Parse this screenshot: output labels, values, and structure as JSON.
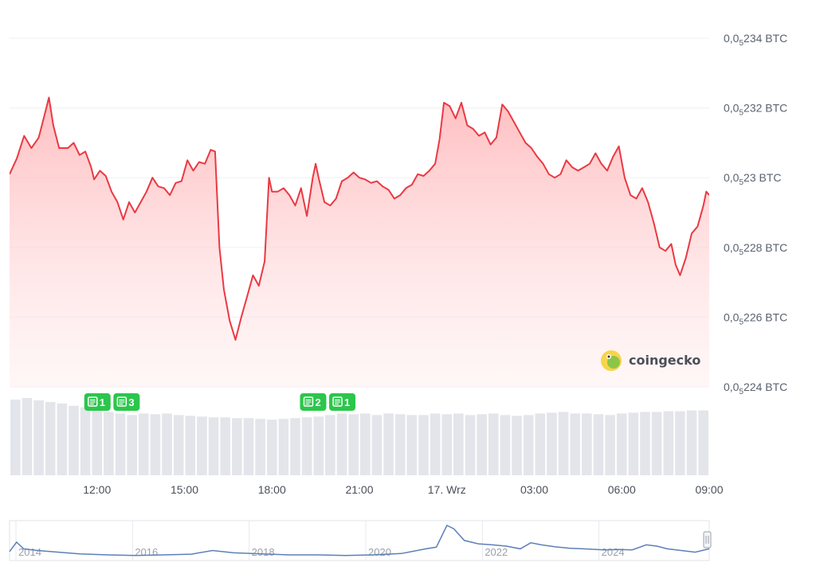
{
  "chart_data": {
    "type": "line",
    "price_unit": "BTC",
    "y_ticks": [
      {
        "value": 2.24e-06,
        "label_base": "0,0",
        "label_sub": "5",
        "label_rest": "224 BTC"
      },
      {
        "value": 2.26e-06,
        "label_base": "0,0",
        "label_sub": "5",
        "label_rest": "226 BTC"
      },
      {
        "value": 2.28e-06,
        "label_base": "0,0",
        "label_sub": "5",
        "label_rest": "228 BTC"
      },
      {
        "value": 2.3e-06,
        "label_base": "0,0",
        "label_sub": "5",
        "label_rest": "23 BTC"
      },
      {
        "value": 2.32e-06,
        "label_base": "0,0",
        "label_sub": "5",
        "label_rest": "232 BTC"
      },
      {
        "value": 2.34e-06,
        "label_base": "0,0",
        "label_sub": "5",
        "label_rest": "234 BTC"
      }
    ],
    "ylim": [
      2.24e-06,
      2.34e-06
    ],
    "x_range_hours": [
      9,
      33
    ],
    "x_ticks": [
      {
        "hour": 12,
        "label": "12:00"
      },
      {
        "hour": 15,
        "label": "15:00"
      },
      {
        "hour": 18,
        "label": "18:00"
      },
      {
        "hour": 21,
        "label": "21:00"
      },
      {
        "hour": 24,
        "label": "17. Wrz"
      },
      {
        "hour": 27,
        "label": "03:00"
      },
      {
        "hour": 30,
        "label": "06:00"
      },
      {
        "hour": 33,
        "label": "09:00"
      }
    ],
    "series": [
      {
        "color": "#ea3943",
        "points": [
          [
            9.0,
            2.301
          ],
          [
            9.25,
            2.3055
          ],
          [
            9.5,
            2.312
          ],
          [
            9.75,
            2.3085
          ],
          [
            10.0,
            2.3115
          ],
          [
            10.2,
            2.318
          ],
          [
            10.35,
            2.323
          ],
          [
            10.5,
            2.315
          ],
          [
            10.7,
            2.3085
          ],
          [
            11.0,
            2.3085
          ],
          [
            11.2,
            2.31
          ],
          [
            11.4,
            2.3065
          ],
          [
            11.6,
            2.3075
          ],
          [
            11.8,
            2.303
          ],
          [
            11.9,
            2.2995
          ],
          [
            12.1,
            2.302
          ],
          [
            12.3,
            2.3005
          ],
          [
            12.5,
            2.296
          ],
          [
            12.7,
            2.293
          ],
          [
            12.9,
            2.288
          ],
          [
            13.1,
            2.293
          ],
          [
            13.3,
            2.29
          ],
          [
            13.5,
            2.293
          ],
          [
            13.7,
            2.296
          ],
          [
            13.9,
            2.3
          ],
          [
            14.1,
            2.2975
          ],
          [
            14.3,
            2.297
          ],
          [
            14.5,
            2.295
          ],
          [
            14.7,
            2.2985
          ],
          [
            14.9,
            2.299
          ],
          [
            15.1,
            2.305
          ],
          [
            15.3,
            2.302
          ],
          [
            15.5,
            2.3045
          ],
          [
            15.7,
            2.304
          ],
          [
            15.9,
            2.308
          ],
          [
            16.05,
            2.3075
          ],
          [
            16.2,
            2.28
          ],
          [
            16.35,
            2.268
          ],
          [
            16.55,
            2.259
          ],
          [
            16.75,
            2.2535
          ],
          [
            16.95,
            2.26
          ],
          [
            17.15,
            2.266
          ],
          [
            17.35,
            2.272
          ],
          [
            17.55,
            2.269
          ],
          [
            17.75,
            2.276
          ],
          [
            17.9,
            2.3
          ],
          [
            18.0,
            2.296
          ],
          [
            18.2,
            2.296
          ],
          [
            18.4,
            2.297
          ],
          [
            18.6,
            2.295
          ],
          [
            18.8,
            2.292
          ],
          [
            19.0,
            2.297
          ],
          [
            19.2,
            2.289
          ],
          [
            19.4,
            2.3
          ],
          [
            19.5,
            2.304
          ],
          [
            19.6,
            2.3
          ],
          [
            19.8,
            2.293
          ],
          [
            20.0,
            2.292
          ],
          [
            20.2,
            2.294
          ],
          [
            20.4,
            2.299
          ],
          [
            20.6,
            2.3
          ],
          [
            20.8,
            2.3015
          ],
          [
            21.0,
            2.3
          ],
          [
            21.2,
            2.2995
          ],
          [
            21.4,
            2.2985
          ],
          [
            21.6,
            2.299
          ],
          [
            21.8,
            2.2975
          ],
          [
            22.0,
            2.2965
          ],
          [
            22.2,
            2.294
          ],
          [
            22.4,
            2.295
          ],
          [
            22.6,
            2.297
          ],
          [
            22.8,
            2.298
          ],
          [
            23.0,
            2.301
          ],
          [
            23.2,
            2.3005
          ],
          [
            23.4,
            2.302
          ],
          [
            23.6,
            2.304
          ],
          [
            23.75,
            2.311
          ],
          [
            23.9,
            2.3215
          ],
          [
            24.1,
            2.3205
          ],
          [
            24.3,
            2.317
          ],
          [
            24.5,
            2.3215
          ],
          [
            24.7,
            2.315
          ],
          [
            24.9,
            2.314
          ],
          [
            25.1,
            2.312
          ],
          [
            25.3,
            2.313
          ],
          [
            25.5,
            2.3095
          ],
          [
            25.7,
            2.3115
          ],
          [
            25.9,
            2.321
          ],
          [
            26.1,
            2.319
          ],
          [
            26.3,
            2.316
          ],
          [
            26.5,
            2.313
          ],
          [
            26.7,
            2.31
          ],
          [
            26.9,
            2.3085
          ],
          [
            27.1,
            2.306
          ],
          [
            27.3,
            2.304
          ],
          [
            27.5,
            2.301
          ],
          [
            27.7,
            2.3
          ],
          [
            27.9,
            2.301
          ],
          [
            28.1,
            2.305
          ],
          [
            28.3,
            2.303
          ],
          [
            28.5,
            2.302
          ],
          [
            28.7,
            2.303
          ],
          [
            28.9,
            2.304
          ],
          [
            29.1,
            2.307
          ],
          [
            29.3,
            2.304
          ],
          [
            29.5,
            2.302
          ],
          [
            29.7,
            2.306
          ],
          [
            29.9,
            2.309
          ],
          [
            30.1,
            2.3
          ],
          [
            30.3,
            2.295
          ],
          [
            30.5,
            2.294
          ],
          [
            30.7,
            2.297
          ],
          [
            30.9,
            2.293
          ],
          [
            31.1,
            2.287
          ],
          [
            31.3,
            2.28
          ],
          [
            31.5,
            2.279
          ],
          [
            31.7,
            2.281
          ],
          [
            31.85,
            2.275
          ],
          [
            32.0,
            2.272
          ],
          [
            32.2,
            2.277
          ],
          [
            32.4,
            2.284
          ],
          [
            32.6,
            2.286
          ],
          [
            32.8,
            2.292
          ],
          [
            32.9,
            2.296
          ],
          [
            33.0,
            2.295
          ]
        ]
      }
    ],
    "volume_bars": [
      0.98,
      1.0,
      0.97,
      0.95,
      0.93,
      0.9,
      0.88,
      0.85,
      0.82,
      0.8,
      0.78,
      0.8,
      0.79,
      0.8,
      0.78,
      0.77,
      0.76,
      0.75,
      0.75,
      0.74,
      0.74,
      0.73,
      0.72,
      0.73,
      0.74,
      0.75,
      0.76,
      0.78,
      0.8,
      0.79,
      0.8,
      0.78,
      0.8,
      0.79,
      0.78,
      0.78,
      0.8,
      0.79,
      0.8,
      0.78,
      0.79,
      0.8,
      0.78,
      0.77,
      0.78,
      0.8,
      0.81,
      0.82,
      0.8,
      0.8,
      0.79,
      0.78,
      0.8,
      0.81,
      0.82,
      0.82,
      0.83,
      0.83,
      0.84,
      0.84
    ],
    "events": [
      {
        "hour": 12.0,
        "label": "1"
      },
      {
        "hour": 13.0,
        "label": "3"
      },
      {
        "hour": 19.4,
        "label": "2"
      },
      {
        "hour": 20.4,
        "label": "1"
      }
    ],
    "navigator": {
      "x_ticks": [
        "2014",
        "2016",
        "2018",
        "2020",
        "2022",
        "2024"
      ],
      "points": [
        [
          0,
          0.22
        ],
        [
          0.01,
          0.5
        ],
        [
          0.02,
          0.3
        ],
        [
          0.04,
          0.25
        ],
        [
          0.07,
          0.2
        ],
        [
          0.1,
          0.15
        ],
        [
          0.14,
          0.12
        ],
        [
          0.18,
          0.1
        ],
        [
          0.22,
          0.12
        ],
        [
          0.26,
          0.14
        ],
        [
          0.29,
          0.25
        ],
        [
          0.32,
          0.18
        ],
        [
          0.36,
          0.15
        ],
        [
          0.4,
          0.12
        ],
        [
          0.44,
          0.12
        ],
        [
          0.48,
          0.1
        ],
        [
          0.52,
          0.12
        ],
        [
          0.56,
          0.16
        ],
        [
          0.595,
          0.3
        ],
        [
          0.61,
          0.35
        ],
        [
          0.625,
          1.0
        ],
        [
          0.635,
          0.9
        ],
        [
          0.65,
          0.55
        ],
        [
          0.67,
          0.45
        ],
        [
          0.69,
          0.42
        ],
        [
          0.71,
          0.38
        ],
        [
          0.73,
          0.3
        ],
        [
          0.745,
          0.48
        ],
        [
          0.76,
          0.42
        ],
        [
          0.78,
          0.36
        ],
        [
          0.8,
          0.32
        ],
        [
          0.82,
          0.3
        ],
        [
          0.85,
          0.27
        ],
        [
          0.87,
          0.28
        ],
        [
          0.89,
          0.27
        ],
        [
          0.91,
          0.42
        ],
        [
          0.925,
          0.38
        ],
        [
          0.94,
          0.3
        ],
        [
          0.96,
          0.25
        ],
        [
          0.98,
          0.2
        ],
        [
          1.0,
          0.3
        ]
      ]
    }
  },
  "watermark": {
    "text": "coingecko",
    "logo_icon": "gecko-logo-icon"
  },
  "colors": {
    "line": "#ea3943",
    "area_top": "#ffc9cb",
    "event_badge": "#2bc64b",
    "volume_bar": "#e3e5ea",
    "navigator_line": "#5d7fb8"
  }
}
